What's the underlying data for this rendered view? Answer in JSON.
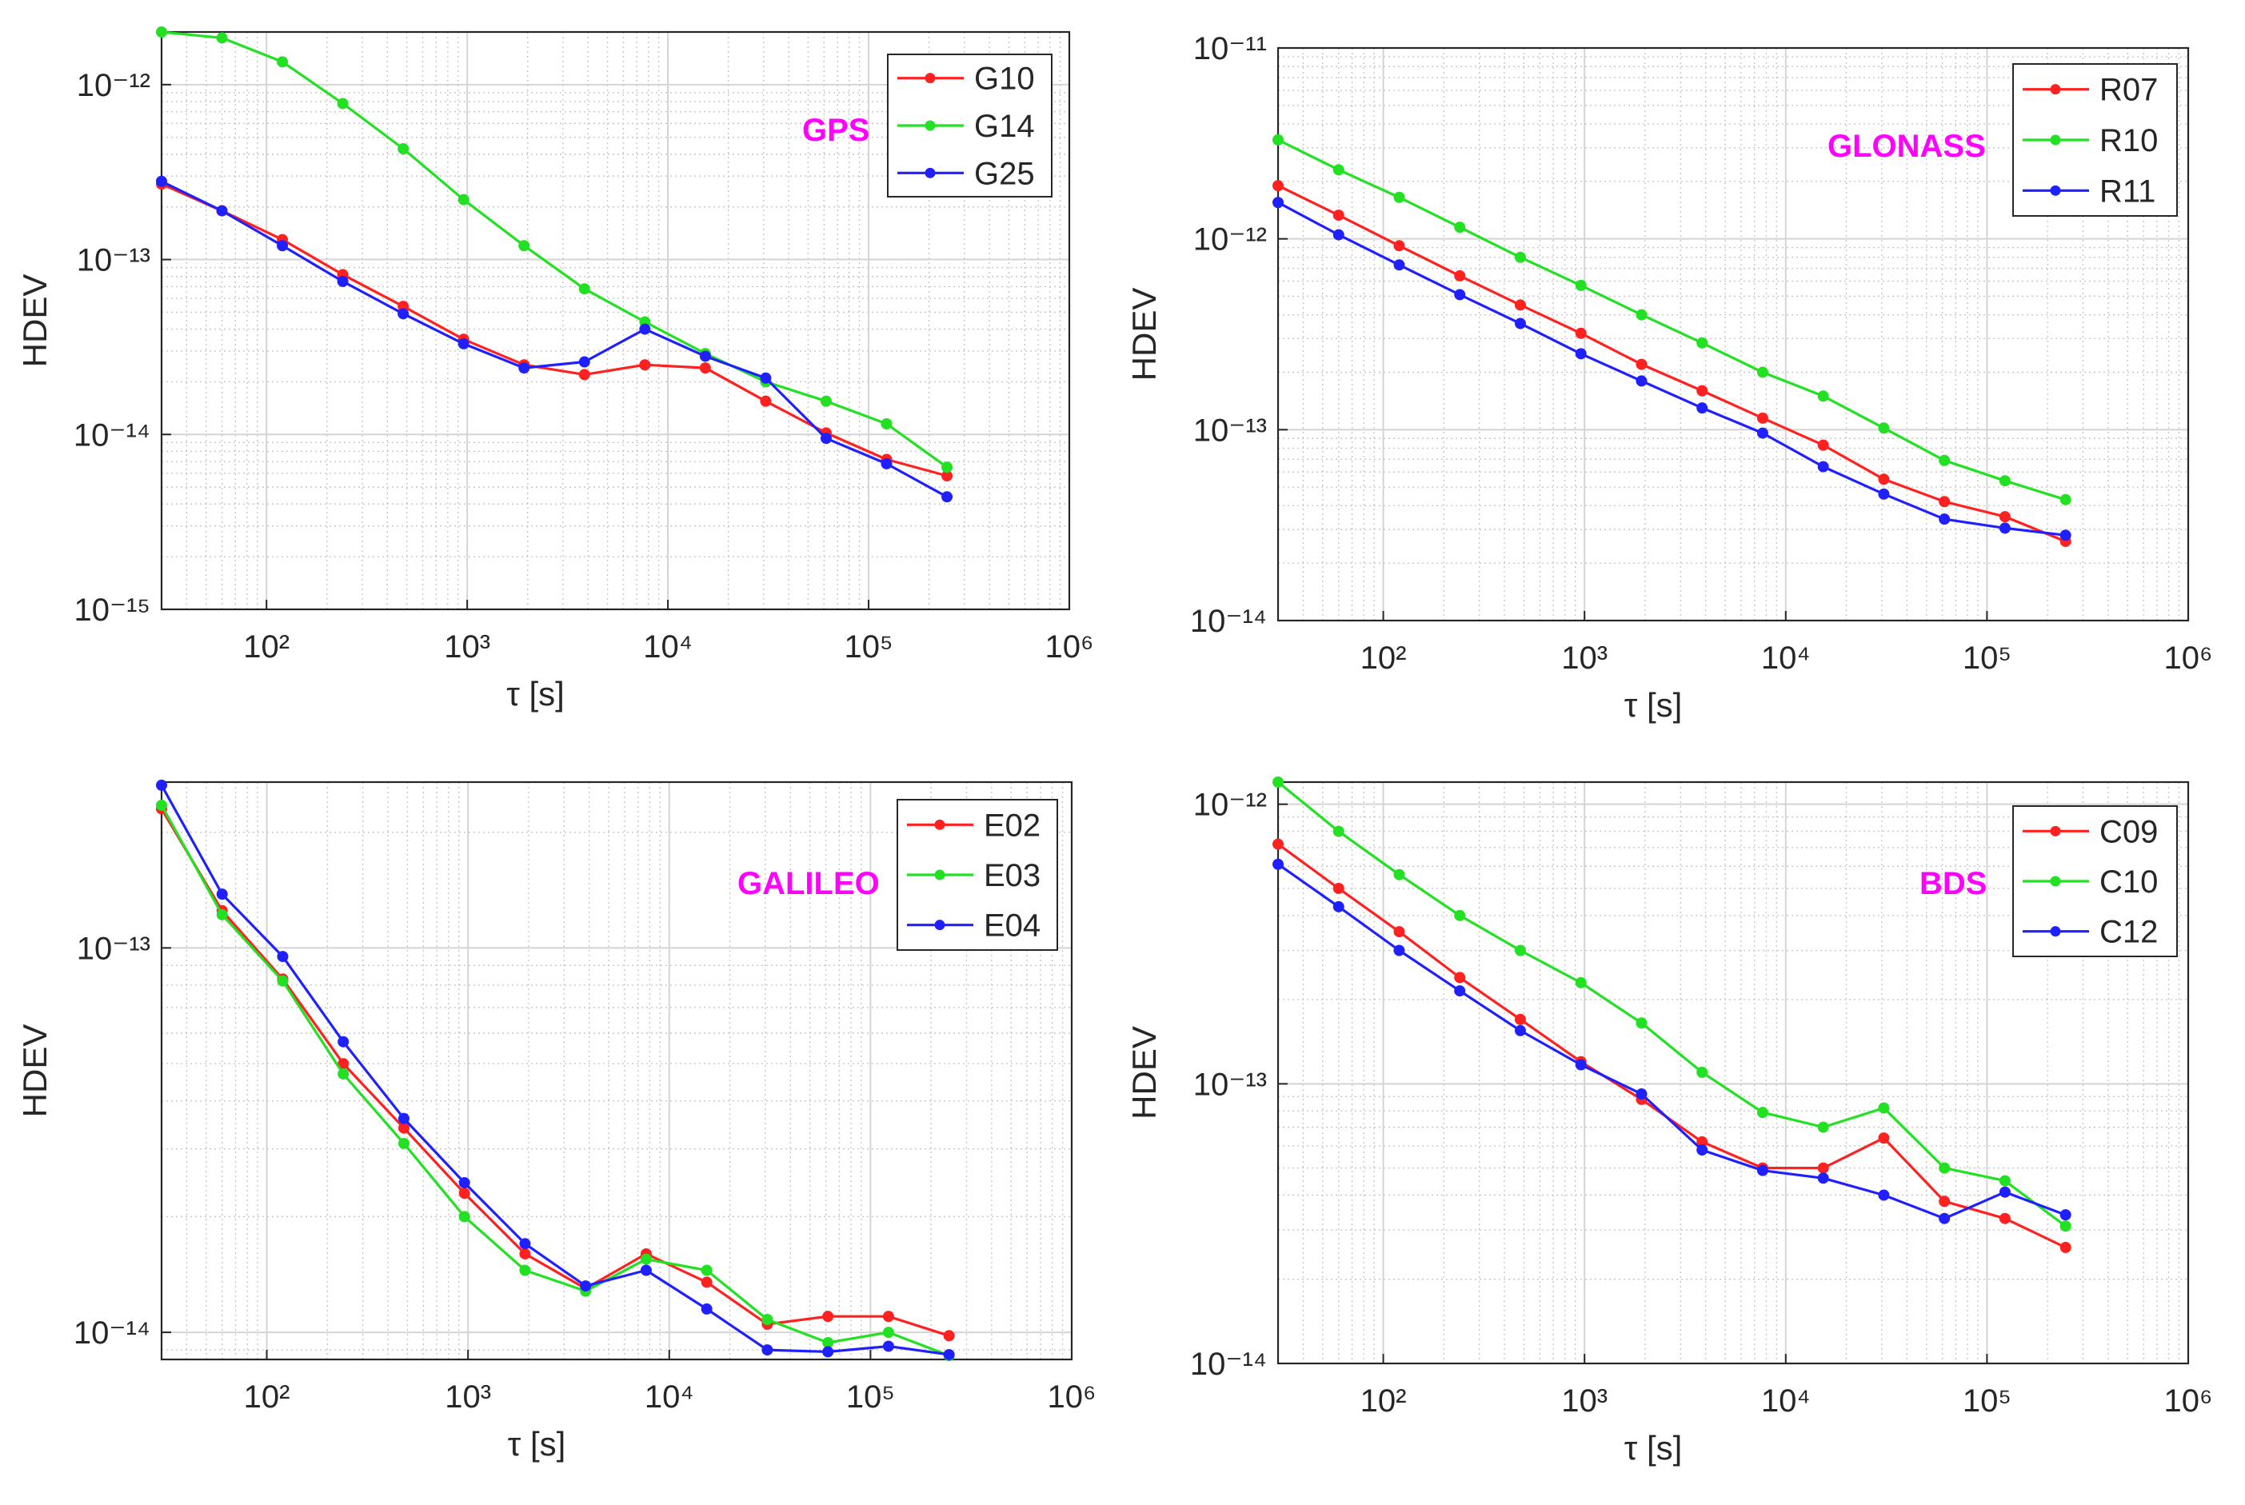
{
  "figure": {
    "colors": {
      "red": "#ff2020",
      "green": "#22e022",
      "blue": "#2020ff",
      "magenta": "#ff00ff",
      "grid": "#c8c8c8",
      "axis": "#262626"
    }
  },
  "chart_data": [
    {
      "type": "line",
      "scale": "log-log",
      "title": "",
      "annotation": "GPS",
      "xlabel": "τ [s]",
      "ylabel": "HDEV",
      "xlim": [
        30,
        1000000
      ],
      "ylim": [
        1e-15,
        2e-12
      ],
      "x_ticks": [
        100,
        1000,
        10000,
        100000,
        1000000
      ],
      "x_tick_labels": [
        "10²",
        "10³",
        "10⁴",
        "10⁵",
        "10⁶"
      ],
      "y_ticks": [
        1e-15,
        1e-14,
        1e-13,
        1e-12
      ],
      "y_tick_labels": [
        "10⁻¹⁵",
        "10⁻¹⁴",
        "10⁻¹³",
        "10⁻¹²"
      ],
      "x": [
        30,
        60,
        120,
        240,
        480,
        960,
        1920,
        3840,
        7680,
        15360,
        30720,
        61440,
        122880,
        245760
      ],
      "legend": "top-right",
      "series": [
        {
          "name": "G10",
          "color": "#ff2020",
          "values": [
            2.7e-13,
            1.9e-13,
            1.3e-13,
            8.2e-14,
            5.4e-14,
            3.5e-14,
            2.5e-14,
            2.2e-14,
            2.5e-14,
            2.4e-14,
            1.55e-14,
            1.02e-14,
            7.2e-15,
            5.8e-15
          ]
        },
        {
          "name": "G14",
          "color": "#22e022",
          "values": [
            2e-12,
            1.85e-12,
            1.35e-12,
            7.8e-13,
            4.3e-13,
            2.2e-13,
            1.2e-13,
            6.8e-14,
            4.4e-14,
            2.9e-14,
            2e-14,
            1.55e-14,
            1.15e-14,
            6.5e-15
          ]
        },
        {
          "name": "G25",
          "color": "#2020ff",
          "values": [
            2.8e-13,
            1.9e-13,
            1.2e-13,
            7.5e-14,
            4.9e-14,
            3.3e-14,
            2.4e-14,
            2.6e-14,
            4e-14,
            2.8e-14,
            2.1e-14,
            9.5e-15,
            6.8e-15,
            4.4e-15
          ]
        }
      ]
    },
    {
      "type": "line",
      "scale": "log-log",
      "title": "",
      "annotation": "GLONASS",
      "xlabel": "τ [s]",
      "ylabel": "HDEV",
      "xlim": [
        30,
        1000000
      ],
      "ylim": [
        1e-14,
        1e-11
      ],
      "x_ticks": [
        100,
        1000,
        10000,
        100000,
        1000000
      ],
      "x_tick_labels": [
        "10²",
        "10³",
        "10⁴",
        "10⁵",
        "10⁶"
      ],
      "y_ticks": [
        1e-14,
        1e-13,
        1e-12,
        1e-11
      ],
      "y_tick_labels": [
        "10⁻¹⁴",
        "10⁻¹³",
        "10⁻¹²",
        "10⁻¹¹"
      ],
      "x": [
        30,
        60,
        120,
        240,
        480,
        960,
        1920,
        3840,
        7680,
        15360,
        30720,
        61440,
        122880,
        245760
      ],
      "legend": "top-right",
      "series": [
        {
          "name": "R07",
          "color": "#ff2020",
          "values": [
            1.9e-12,
            1.33e-12,
            9.2e-13,
            6.4e-13,
            4.5e-13,
            3.2e-13,
            2.2e-13,
            1.6e-13,
            1.15e-13,
            8.3e-14,
            5.5e-14,
            4.2e-14,
            3.5e-14,
            2.6e-14
          ]
        },
        {
          "name": "R10",
          "color": "#22e022",
          "values": [
            3.3e-12,
            2.3e-12,
            1.65e-12,
            1.15e-12,
            8e-13,
            5.7e-13,
            4e-13,
            2.85e-13,
            2e-13,
            1.5e-13,
            1.02e-13,
            6.9e-14,
            5.4e-14,
            4.3e-14
          ]
        },
        {
          "name": "R11",
          "color": "#2020ff",
          "values": [
            1.55e-12,
            1.05e-12,
            7.3e-13,
            5.1e-13,
            3.6e-13,
            2.5e-13,
            1.8e-13,
            1.3e-13,
            9.6e-14,
            6.4e-14,
            4.6e-14,
            3.4e-14,
            3.05e-14,
            2.8e-14
          ]
        }
      ]
    },
    {
      "type": "line",
      "scale": "log-log",
      "title": "",
      "annotation": "GALILEO",
      "xlabel": "τ [s]",
      "ylabel": "HDEV",
      "xlim": [
        30,
        1000000
      ],
      "ylim": [
        8.5e-15,
        2.7e-13
      ],
      "x_ticks": [
        100,
        1000,
        10000,
        100000,
        1000000
      ],
      "x_tick_labels": [
        "10²",
        "10³",
        "10⁴",
        "10⁵",
        "10⁶"
      ],
      "y_ticks": [
        1e-14,
        1e-13
      ],
      "y_tick_labels": [
        "10⁻¹⁴",
        "10⁻¹³"
      ],
      "x": [
        30,
        60,
        120,
        240,
        480,
        960,
        1920,
        3840,
        7680,
        15360,
        30720,
        61440,
        122880,
        245760
      ],
      "legend": "top-right",
      "series": [
        {
          "name": "E02",
          "color": "#ff2020",
          "values": [
            2.3e-13,
            1.25e-13,
            8.3e-14,
            5e-14,
            3.4e-14,
            2.3e-14,
            1.6e-14,
            1.3e-14,
            1.6e-14,
            1.35e-14,
            1.05e-14,
            1.1e-14,
            1.1e-14,
            9.8e-15
          ]
        },
        {
          "name": "E03",
          "color": "#22e022",
          "values": [
            2.35e-13,
            1.22e-13,
            8.2e-14,
            4.7e-14,
            3.1e-14,
            2e-14,
            1.45e-14,
            1.28e-14,
            1.55e-14,
            1.45e-14,
            1.08e-14,
            9.4e-15,
            1e-14,
            8.7e-15
          ]
        },
        {
          "name": "E04",
          "color": "#2020ff",
          "values": [
            2.65e-13,
            1.38e-13,
            9.5e-14,
            5.7e-14,
            3.6e-14,
            2.45e-14,
            1.7e-14,
            1.32e-14,
            1.45e-14,
            1.15e-14,
            9e-15,
            8.9e-15,
            9.2e-15,
            8.75e-15
          ]
        }
      ]
    },
    {
      "type": "line",
      "scale": "log-log",
      "title": "",
      "annotation": "BDS",
      "xlabel": "τ [s]",
      "ylabel": "HDEV",
      "xlim": [
        30,
        1000000
      ],
      "ylim": [
        1e-14,
        1.2e-12
      ],
      "x_ticks": [
        100,
        1000,
        10000,
        100000,
        1000000
      ],
      "x_tick_labels": [
        "10²",
        "10³",
        "10⁴",
        "10⁵",
        "10⁶"
      ],
      "y_ticks": [
        1e-14,
        1e-13,
        1e-12
      ],
      "y_tick_labels": [
        "10⁻¹⁴",
        "10⁻¹³",
        "10⁻¹²"
      ],
      "x": [
        30,
        60,
        120,
        240,
        480,
        960,
        1920,
        3840,
        7680,
        15360,
        30720,
        61440,
        122880,
        245760
      ],
      "legend": "top-right",
      "series": [
        {
          "name": "C09",
          "color": "#ff2020",
          "values": [
            7.2e-13,
            5e-13,
            3.5e-13,
            2.4e-13,
            1.7e-13,
            1.2e-13,
            8.8e-14,
            6.2e-14,
            5e-14,
            5e-14,
            6.4e-14,
            3.8e-14,
            3.3e-14,
            2.6e-14
          ]
        },
        {
          "name": "C10",
          "color": "#22e022",
          "values": [
            1.2e-12,
            8e-13,
            5.6e-13,
            4e-13,
            3e-13,
            2.3e-13,
            1.65e-13,
            1.1e-13,
            7.9e-14,
            7e-14,
            8.2e-14,
            5e-14,
            4.5e-14,
            3.1e-14
          ]
        },
        {
          "name": "C12",
          "color": "#2020ff",
          "values": [
            6.1e-13,
            4.3e-13,
            3e-13,
            2.15e-13,
            1.55e-13,
            1.17e-13,
            9.2e-14,
            5.8e-14,
            4.9e-14,
            4.6e-14,
            4e-14,
            3.3e-14,
            4.1e-14,
            3.4e-14
          ]
        }
      ]
    }
  ]
}
